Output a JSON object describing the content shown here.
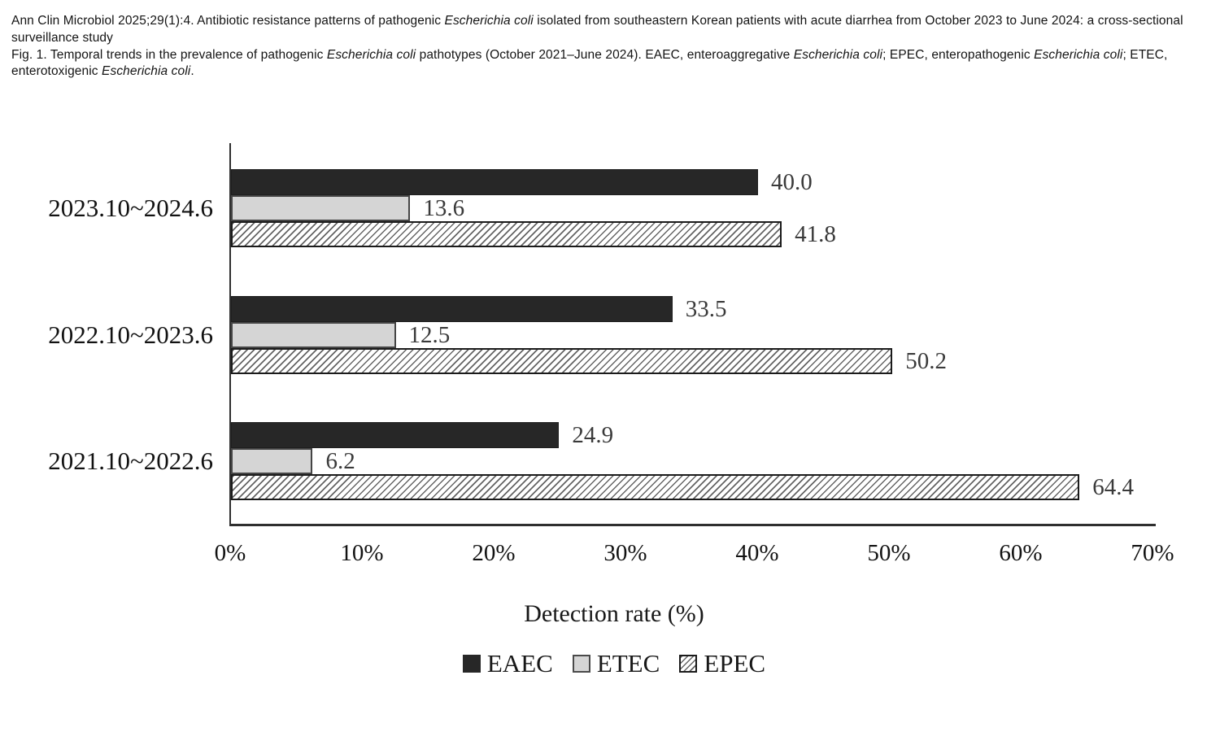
{
  "header": {
    "citation": [
      "Ann Clin Microbiol 2025;29(1):4. Antibiotic resistance patterns of pathogenic ",
      "Escherichia coli",
      " isolated from southeastern Korean patients with acute diarrhea from October 2023 to June 2024: a cross-sectional surveillance study"
    ],
    "figure_caption": [
      "Fig. 1. Temporal trends in the prevalence of pathogenic ",
      "Escherichia coli",
      " pathotypes (October 2021–June 2024). EAEC, enteroaggregative ",
      "Escherichia coli",
      "; EPEC, enteropathogenic ",
      "Escherichia coli",
      "; ETEC, enterotoxigenic ",
      "Escherichia coli",
      "."
    ]
  },
  "chart_data": {
    "type": "bar",
    "orientation": "horizontal",
    "title": "",
    "xlabel": "Detection rate (%)",
    "ylabel": "",
    "xlim": [
      0,
      70
    ],
    "xticks": [
      "0%",
      "10%",
      "20%",
      "30%",
      "40%",
      "50%",
      "60%",
      "70%"
    ],
    "grid": false,
    "legend_position": "bottom",
    "value_labels_shown": true,
    "categories": [
      "2023.10~2024.6",
      "2022.10~2023.6",
      "2021.10~2022.6"
    ],
    "series": [
      {
        "id": "eaec",
        "name": "EAEC",
        "fill": "solid",
        "color": "#272727",
        "values": [
          40.0,
          33.5,
          24.9
        ],
        "value_labels": [
          "40.0",
          "33.5",
          "24.9"
        ]
      },
      {
        "id": "etec",
        "name": "ETEC",
        "fill": "solid",
        "color": "#d5d5d5",
        "border_color": "#454545",
        "values": [
          13.6,
          12.5,
          6.2
        ],
        "value_labels": [
          "13.6",
          "12.5",
          "6.2"
        ]
      },
      {
        "id": "epec",
        "name": "EPEC",
        "fill": "diagonal-hatch",
        "color": "#ffffff",
        "hatch_color": "#646464",
        "border_color": "#1b1b1b",
        "values": [
          41.8,
          50.2,
          64.4
        ],
        "value_labels": [
          "41.8",
          "50.2",
          "64.4"
        ]
      }
    ]
  }
}
